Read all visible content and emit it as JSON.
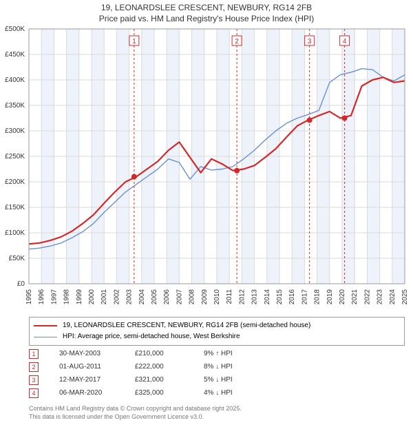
{
  "title_line1": "19, LEONARDSLEE CRESCENT, NEWBURY, RG14 2FB",
  "title_line2": "Price paid vs. HM Land Registry's House Price Index (HPI)",
  "chart": {
    "type": "line",
    "background_color": "#ffffff",
    "grid_color": "#d9d9d9",
    "shade_color": "#eef2fa",
    "x_years": [
      "1995",
      "1996",
      "1997",
      "1998",
      "1999",
      "2000",
      "2001",
      "2002",
      "2003",
      "2004",
      "2005",
      "2006",
      "2007",
      "2008",
      "2009",
      "2010",
      "2011",
      "2012",
      "2013",
      "2014",
      "2015",
      "2016",
      "2017",
      "2018",
      "2019",
      "2020",
      "2021",
      "2022",
      "2023",
      "2024",
      "2025"
    ],
    "x_shade": [
      false,
      true,
      false,
      true,
      false,
      true,
      false,
      true,
      false,
      true,
      false,
      true,
      false,
      true,
      false,
      true,
      false,
      true,
      false,
      true,
      false,
      true,
      false,
      true,
      false,
      true,
      false,
      true,
      false,
      true,
      false
    ],
    "y_labels": [
      "£0",
      "£50K",
      "£100K",
      "£150K",
      "£200K",
      "£250K",
      "£300K",
      "£350K",
      "£400K",
      "£450K",
      "£500K"
    ],
    "ylim": [
      0,
      500000
    ],
    "tick_fontsize": 10,
    "series": [
      {
        "name": "HPI: Average price, semi-detached house, West Berkshire",
        "color": "#6a8fd4",
        "width": 1.4,
        "values": [
          68,
          70,
          74,
          80,
          90,
          102,
          118,
          140,
          160,
          180,
          195,
          210,
          225,
          245,
          238,
          205,
          230,
          223,
          225,
          230,
          245,
          262,
          282,
          300,
          315,
          325,
          332,
          340,
          395,
          410,
          415,
          422,
          420,
          405,
          398,
          410
        ]
      },
      {
        "name": "19, LEONARDSLEE CRESCENT, NEWBURY, RG14 2FB (semi-detached house)",
        "color": "#d62728",
        "width": 2.2,
        "values": [
          78,
          80,
          85,
          92,
          103,
          118,
          135,
          158,
          180,
          200,
          210,
          225,
          240,
          262,
          278,
          248,
          218,
          245,
          235,
          222,
          225,
          232,
          248,
          265,
          288,
          310,
          321,
          330,
          338,
          325,
          330,
          388,
          400,
          405,
          395,
          398
        ]
      }
    ],
    "event_markers": [
      {
        "num": "1",
        "year": 2003.4,
        "y": 210000
      },
      {
        "num": "2",
        "year": 2011.6,
        "y": 222000
      },
      {
        "num": "3",
        "year": 2017.4,
        "y": 321000
      },
      {
        "num": "4",
        "year": 2020.2,
        "y": 325000
      }
    ],
    "marker_border": "#d62728",
    "marker_dash": "3,3",
    "dot_color": "#d62728"
  },
  "legend": [
    {
      "color": "#d62728",
      "label": "19, LEONARDSLEE CRESCENT, NEWBURY, RG14 2FB (semi-detached house)"
    },
    {
      "color": "#6a8fd4",
      "label": "HPI: Average price, semi-detached house, West Berkshire"
    }
  ],
  "marker_rows": [
    {
      "num": "1",
      "date": "30-MAY-2003",
      "price": "£210,000",
      "delta": "9% ↑ HPI"
    },
    {
      "num": "2",
      "date": "01-AUG-2011",
      "price": "£222,000",
      "delta": "8% ↓ HPI"
    },
    {
      "num": "3",
      "date": "12-MAY-2017",
      "price": "£321,000",
      "delta": "5% ↓ HPI"
    },
    {
      "num": "4",
      "date": "06-MAR-2020",
      "price": "£325,000",
      "delta": "4% ↓ HPI"
    }
  ],
  "footer_line1": "Contains HM Land Registry data © Crown copyright and database right 2025.",
  "footer_line2": "This data is licensed under the Open Government Licence v3.0."
}
